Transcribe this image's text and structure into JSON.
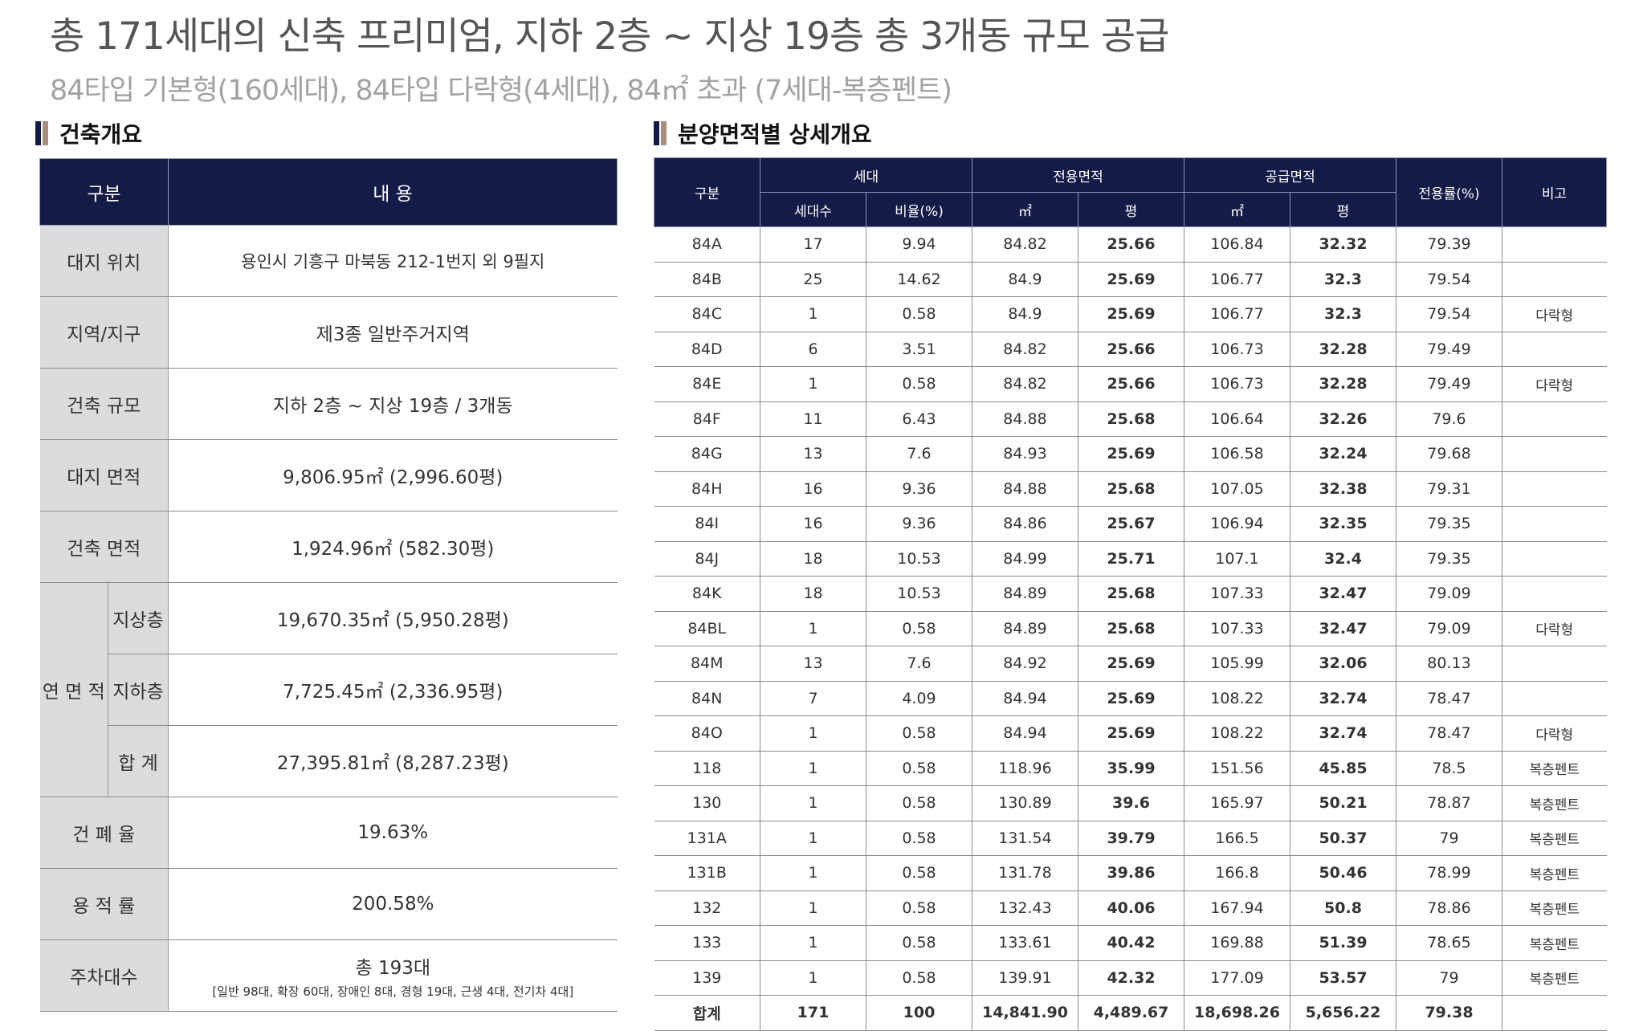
{
  "headline": "총 171세대의 신축 프리미엄, 지하 2층 ~ 지상 19층 총 3개동 규모 공급",
  "subline": "84타입 기본형(160세대), 84타입 다락형(4세대), 84㎡ 초과 (7세대-복층펜트)",
  "left": {
    "title": "건축개요",
    "header": {
      "col1": "구분",
      "col2": "내 용"
    },
    "site": {
      "label": "대지 위치",
      "value": "용인시  기흥구  마북동  212-1번지  외  9필지"
    },
    "zone": {
      "label": "지역/지구",
      "value": "제3종 일반주거지역"
    },
    "scale": {
      "label": "건축 규모",
      "value": "지하 2층 ~ 지상 19층 / 3개동"
    },
    "site_area": {
      "label": "대지 면적",
      "value": "9,806.95㎡ (2,996.60평)"
    },
    "build_area": {
      "label": "건축 면적",
      "value": "1,924.96㎡ (582.30평)"
    },
    "gfa": {
      "label": "연 면 적",
      "above_label": "지상층",
      "above_value": "19,670.35㎡ (5,950.28평)",
      "below_label": "지하층",
      "below_value": "7,725.45㎡ (2,336.95평)",
      "sum_label": "합 계",
      "sum_value": "27,395.81㎡ (8,287.23평)"
    },
    "bcr": {
      "label": "건 폐 율",
      "value": "19.63%"
    },
    "far": {
      "label": "용 적 률",
      "value": "200.58%"
    },
    "parking": {
      "label": "주차대수",
      "value": "총 193대",
      "note": "[일반 98대, 확장 60대, 장애인 8대, 경형 19대, 근생 4대, 전기차 4대]"
    }
  },
  "right": {
    "title": "분양면적별 상세개요",
    "headers": {
      "type": "구분",
      "household": "세대",
      "exclusive": "전용면적",
      "supply": "공급면적",
      "ratio": "전용률(%)",
      "remark": "비고",
      "count": "세대수",
      "percent": "비율(%)",
      "m2_a": "㎡",
      "py_a": "평",
      "m2_b": "㎡",
      "py_b": "평"
    },
    "rows": [
      [
        "84A",
        "17",
        "9.94",
        "84.82",
        "25.66",
        "106.84",
        "32.32",
        "79.39",
        ""
      ],
      [
        "84B",
        "25",
        "14.62",
        "84.9",
        "25.69",
        "106.77",
        "32.3",
        "79.54",
        ""
      ],
      [
        "84C",
        "1",
        "0.58",
        "84.9",
        "25.69",
        "106.77",
        "32.3",
        "79.54",
        "다락형"
      ],
      [
        "84D",
        "6",
        "3.51",
        "84.82",
        "25.66",
        "106.73",
        "32.28",
        "79.49",
        ""
      ],
      [
        "84E",
        "1",
        "0.58",
        "84.82",
        "25.66",
        "106.73",
        "32.28",
        "79.49",
        "다락형"
      ],
      [
        "84F",
        "11",
        "6.43",
        "84.88",
        "25.68",
        "106.64",
        "32.26",
        "79.6",
        ""
      ],
      [
        "84G",
        "13",
        "7.6",
        "84.93",
        "25.69",
        "106.58",
        "32.24",
        "79.68",
        ""
      ],
      [
        "84H",
        "16",
        "9.36",
        "84.88",
        "25.68",
        "107.05",
        "32.38",
        "79.31",
        ""
      ],
      [
        "84I",
        "16",
        "9.36",
        "84.86",
        "25.67",
        "106.94",
        "32.35",
        "79.35",
        ""
      ],
      [
        "84J",
        "18",
        "10.53",
        "84.99",
        "25.71",
        "107.1",
        "32.4",
        "79.35",
        ""
      ],
      [
        "84K",
        "18",
        "10.53",
        "84.89",
        "25.68",
        "107.33",
        "32.47",
        "79.09",
        ""
      ],
      [
        "84BL",
        "1",
        "0.58",
        "84.89",
        "25.68",
        "107.33",
        "32.47",
        "79.09",
        "다락형"
      ],
      [
        "84M",
        "13",
        "7.6",
        "84.92",
        "25.69",
        "105.99",
        "32.06",
        "80.13",
        ""
      ],
      [
        "84N",
        "7",
        "4.09",
        "84.94",
        "25.69",
        "108.22",
        "32.74",
        "78.47",
        ""
      ],
      [
        "84O",
        "1",
        "0.58",
        "84.94",
        "25.69",
        "108.22",
        "32.74",
        "78.47",
        "다락형"
      ],
      [
        "118",
        "1",
        "0.58",
        "118.96",
        "35.99",
        "151.56",
        "45.85",
        "78.5",
        "복층펜트"
      ],
      [
        "130",
        "1",
        "0.58",
        "130.89",
        "39.6",
        "165.97",
        "50.21",
        "78.87",
        "복층펜트"
      ],
      [
        "131A",
        "1",
        "0.58",
        "131.54",
        "39.79",
        "166.5",
        "50.37",
        "79",
        "복층펜트"
      ],
      [
        "131B",
        "1",
        "0.58",
        "131.78",
        "39.86",
        "166.8",
        "50.46",
        "78.99",
        "복층펜트"
      ],
      [
        "132",
        "1",
        "0.58",
        "132.43",
        "40.06",
        "167.94",
        "50.8",
        "78.86",
        "복층펜트"
      ],
      [
        "133",
        "1",
        "0.58",
        "133.61",
        "40.42",
        "169.88",
        "51.39",
        "78.65",
        "복층펜트"
      ],
      [
        "139",
        "1",
        "0.58",
        "139.91",
        "42.32",
        "177.09",
        "53.57",
        "79",
        "복층펜트"
      ]
    ],
    "total": [
      "합계",
      "171",
      "100",
      "14,841.90",
      "4,489.67",
      "18,698.26",
      "5,656.22",
      "79.38",
      ""
    ]
  }
}
